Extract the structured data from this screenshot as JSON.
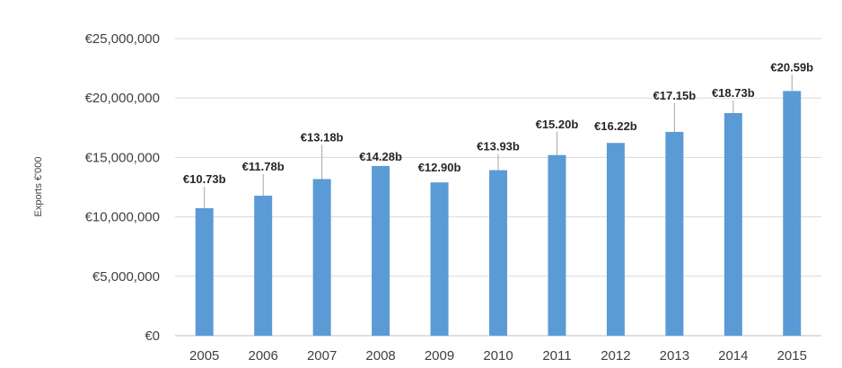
{
  "chart_data": {
    "type": "bar",
    "title": "",
    "xlabel": "",
    "ylabel": "Exports €'000",
    "categories": [
      "2005",
      "2006",
      "2007",
      "2008",
      "2009",
      "2010",
      "2011",
      "2012",
      "2013",
      "2014",
      "2015"
    ],
    "values": [
      10730000,
      11780000,
      13180000,
      14280000,
      12900000,
      13930000,
      15200000,
      16220000,
      17150000,
      18730000,
      20590000
    ],
    "data_labels": [
      "€10.73b",
      "€11.78b",
      "€13.18b",
      "€14.28b",
      "€12.90b",
      "€13.93b",
      "€15.20b",
      "€16.22b",
      "€17.15b",
      "€18.73b",
      "€20.59b"
    ],
    "ylim": [
      0,
      25000000
    ],
    "yticks": [
      0,
      5000000,
      10000000,
      15000000,
      20000000,
      25000000
    ],
    "ytick_labels": [
      "€0",
      "€5,000,000",
      "€10,000,000",
      "€15,000,000",
      "€20,000,000",
      "€25,000,000"
    ],
    "grid": true,
    "legend": "none",
    "bar_color": "#5b9bd5"
  }
}
